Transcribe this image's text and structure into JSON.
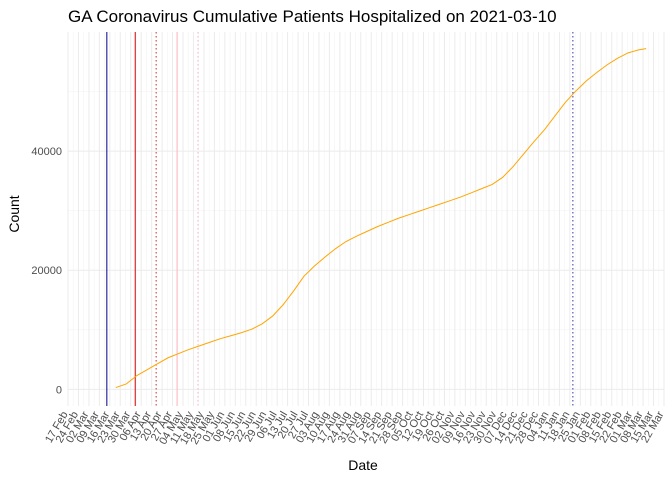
{
  "chart_data": {
    "type": "line",
    "title": "GA Coronavirus Cumulative Patients Hospitalized on 2021-03-10",
    "xlabel": "Date",
    "ylabel": "Count",
    "xlim": [
      "2020-02-17",
      "2021-03-22"
    ],
    "ylim": [
      -2800,
      60000
    ],
    "x_ticks": [
      "17 Feb",
      "24 Feb",
      "02 Mar",
      "09 Mar",
      "16 Mar",
      "23 Mar",
      "30 Mar",
      "06 Apr",
      "13 Apr",
      "20 Apr",
      "27 Apr",
      "04 May",
      "11 May",
      "18 May",
      "25 May",
      "01 Jun",
      "08 Jun",
      "15 Jun",
      "22 Jun",
      "29 Jun",
      "06 Jul",
      "13 Jul",
      "20 Jul",
      "27 Jul",
      "03 Aug",
      "10 Aug",
      "17 Aug",
      "24 Aug",
      "31 Aug",
      "07 Sep",
      "14 Sep",
      "21 Sep",
      "28 Sep",
      "05 Oct",
      "12 Oct",
      "19 Oct",
      "26 Oct",
      "02 Nov",
      "09 Nov",
      "16 Nov",
      "23 Nov",
      "30 Nov",
      "07 Dec",
      "14 Dec",
      "21 Dec",
      "28 Dec",
      "04 Jan",
      "11 Jan",
      "18 Jan",
      "25 Jan",
      "01 Feb",
      "08 Feb",
      "15 Feb",
      "22 Feb",
      "01 Mar",
      "08 Mar",
      "15 Mar",
      "22 Mar"
    ],
    "y_ticks": [
      0,
      20000,
      40000
    ],
    "y_tick_labels": [
      "0",
      "20000",
      "40000"
    ],
    "grid": true,
    "series": [
      {
        "color": "#FFA500",
        "points": [
          [
            "2020-03-20",
            300
          ],
          [
            "2020-03-27",
            900
          ],
          [
            "2020-04-03",
            2300
          ],
          [
            "2020-04-10",
            3300
          ],
          [
            "2020-04-17",
            4300
          ],
          [
            "2020-04-24",
            5300
          ],
          [
            "2020-05-01",
            6000
          ],
          [
            "2020-05-08",
            6700
          ],
          [
            "2020-05-15",
            7300
          ],
          [
            "2020-05-22",
            7900
          ],
          [
            "2020-05-29",
            8500
          ],
          [
            "2020-06-05",
            9000
          ],
          [
            "2020-06-12",
            9500
          ],
          [
            "2020-06-19",
            10100
          ],
          [
            "2020-06-26",
            11000
          ],
          [
            "2020-07-03",
            12300
          ],
          [
            "2020-07-10",
            14200
          ],
          [
            "2020-07-17",
            16500
          ],
          [
            "2020-07-24",
            19000
          ],
          [
            "2020-07-31",
            20700
          ],
          [
            "2020-08-07",
            22200
          ],
          [
            "2020-08-14",
            23600
          ],
          [
            "2020-08-21",
            24800
          ],
          [
            "2020-08-28",
            25700
          ],
          [
            "2020-09-04",
            26500
          ],
          [
            "2020-09-11",
            27300
          ],
          [
            "2020-09-18",
            28000
          ],
          [
            "2020-09-25",
            28700
          ],
          [
            "2020-10-02",
            29300
          ],
          [
            "2020-10-09",
            29900
          ],
          [
            "2020-10-16",
            30500
          ],
          [
            "2020-10-23",
            31100
          ],
          [
            "2020-10-30",
            31700
          ],
          [
            "2020-11-06",
            32300
          ],
          [
            "2020-11-13",
            33000
          ],
          [
            "2020-11-20",
            33700
          ],
          [
            "2020-11-27",
            34400
          ],
          [
            "2020-12-04",
            35600
          ],
          [
            "2020-12-11",
            37400
          ],
          [
            "2020-12-18",
            39500
          ],
          [
            "2020-12-25",
            41600
          ],
          [
            "2021-01-01",
            43600
          ],
          [
            "2021-01-08",
            45900
          ],
          [
            "2021-01-15",
            48200
          ],
          [
            "2021-01-22",
            50100
          ],
          [
            "2021-01-29",
            51800
          ],
          [
            "2021-02-05",
            53200
          ],
          [
            "2021-02-12",
            54500
          ],
          [
            "2021-02-19",
            55600
          ],
          [
            "2021-02-26",
            56500
          ],
          [
            "2021-03-05",
            57000
          ],
          [
            "2021-03-10",
            57200
          ]
        ]
      }
    ],
    "vertical_lines": [
      {
        "x": "2020-03-14",
        "color": "#00008B",
        "style": "solid"
      },
      {
        "x": "2020-04-02",
        "color": "#CC0000",
        "style": "solid"
      },
      {
        "x": "2020-04-16",
        "color": "#CC3333",
        "style": "dotted"
      },
      {
        "x": "2020-04-30",
        "color": "#FFB6C1",
        "style": "solid"
      },
      {
        "x": "2020-05-14",
        "color": "#FFB6C1",
        "style": "dotted"
      },
      {
        "x": "2021-01-20",
        "color": "#3333AA",
        "style": "dotted"
      }
    ]
  }
}
